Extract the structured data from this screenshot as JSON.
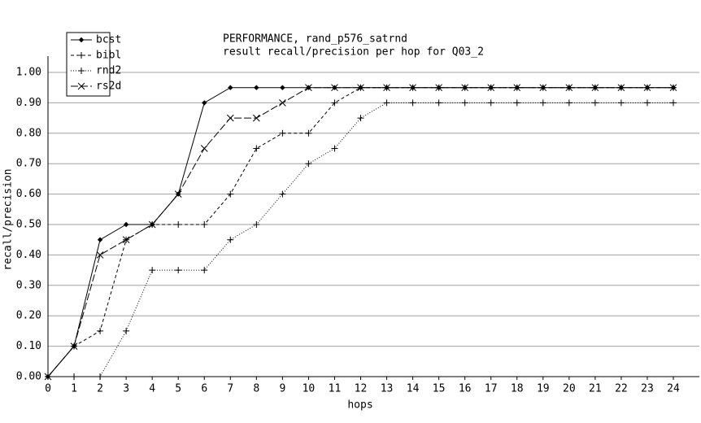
{
  "chart_data": {
    "type": "line",
    "title": "PERFORMANCE, rand_p576_satrnd",
    "subtitle": "result recall/precision per hop for Q03_2",
    "x_label": "hops",
    "y_label": "recall/precision",
    "x": [
      0,
      1,
      2,
      3,
      4,
      5,
      6,
      7,
      8,
      9,
      10,
      11,
      12,
      13,
      14,
      15,
      16,
      17,
      18,
      19,
      20,
      21,
      22,
      23,
      24
    ],
    "xlim": [
      0,
      24
    ],
    "xticks": [
      0,
      1,
      2,
      3,
      4,
      5,
      6,
      7,
      8,
      9,
      10,
      11,
      12,
      13,
      14,
      15,
      16,
      17,
      18,
      19,
      20,
      21,
      22,
      23,
      24
    ],
    "ylim": [
      0,
      1
    ],
    "yticks": [
      {
        "value": 0,
        "label": "0.00"
      },
      {
        "value": 0.1,
        "label": "0.10"
      },
      {
        "value": 0.2,
        "label": "0.20"
      },
      {
        "value": 0.3,
        "label": "0.30"
      },
      {
        "value": 0.4,
        "label": "0.40"
      },
      {
        "value": 0.5,
        "label": "0.50"
      },
      {
        "value": 0.6,
        "label": "0.60"
      },
      {
        "value": 0.7,
        "label": "0.70"
      },
      {
        "value": 0.8,
        "label": "0.80"
      },
      {
        "value": 0.9,
        "label": "0.90"
      },
      {
        "value": 1,
        "label": "1.00"
      }
    ],
    "grid": true,
    "legend": "top-left",
    "series": [
      {
        "name": "bcst",
        "color": "#000000",
        "dash": "solid",
        "marker": "diamond",
        "values": [
          0,
          0.1,
          0.45,
          0.5,
          0.5,
          0.6,
          0.9,
          0.95,
          0.95,
          0.95,
          0.95,
          0.95,
          0.95,
          0.95,
          0.95,
          0.95,
          0.95,
          0.95,
          0.95,
          0.95,
          0.95,
          0.95,
          0.95,
          0.95,
          0.95
        ]
      },
      {
        "name": "bibl",
        "color": "#000000",
        "dash": "dashed",
        "marker": "plus",
        "values": [
          0,
          0.1,
          0.15,
          0.45,
          0.5,
          0.5,
          0.5,
          0.6,
          0.75,
          0.8,
          0.8,
          0.9,
          0.95,
          0.95,
          0.95,
          0.95,
          0.95,
          0.95,
          0.95,
          0.95,
          0.95,
          0.95,
          0.95,
          0.95,
          0.95
        ]
      },
      {
        "name": "rnd2",
        "color": "#000000",
        "dash": "dotted",
        "marker": "plus",
        "values": [
          0,
          0,
          0,
          0.15,
          0.35,
          0.35,
          0.35,
          0.45,
          0.5,
          0.6,
          0.7,
          0.75,
          0.85,
          0.9,
          0.9,
          0.9,
          0.9,
          0.9,
          0.9,
          0.9,
          0.9,
          0.9,
          0.9,
          0.9,
          0.9
        ]
      },
      {
        "name": "rs2d",
        "color": "#000000",
        "dash": "dashdot",
        "marker": "cross",
        "values": [
          0,
          0.1,
          0.4,
          0.45,
          0.5,
          0.6,
          0.75,
          0.85,
          0.85,
          0.9,
          0.95,
          0.95,
          0.95,
          0.95,
          0.95,
          0.95,
          0.95,
          0.95,
          0.95,
          0.95,
          0.95,
          0.95,
          0.95,
          0.95,
          0.95
        ]
      }
    ]
  }
}
